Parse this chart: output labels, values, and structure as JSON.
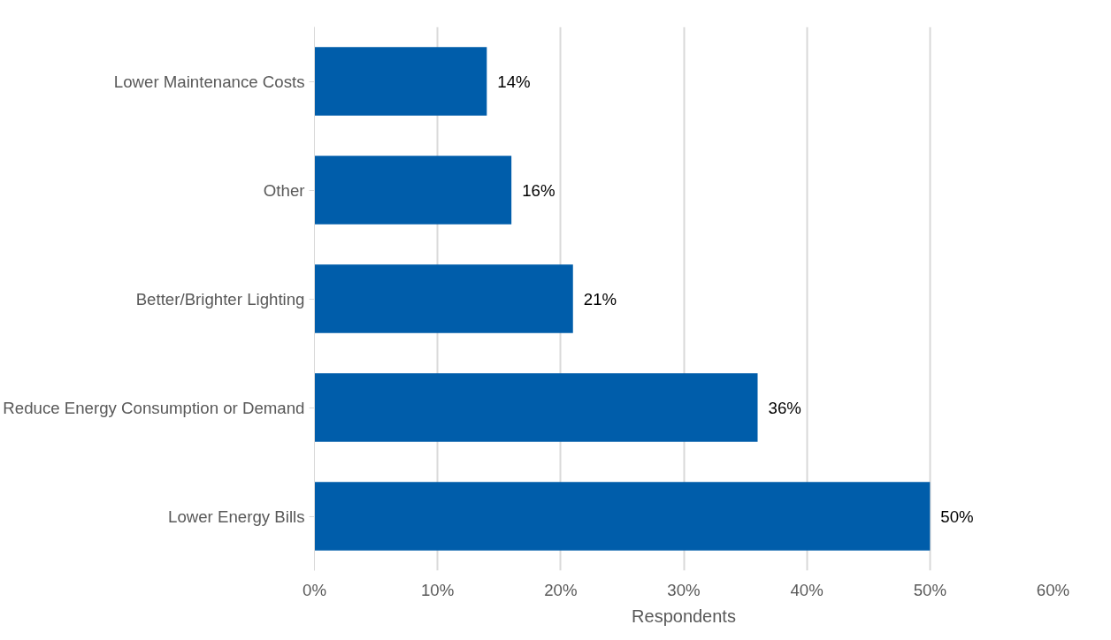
{
  "chart_data": {
    "type": "bar",
    "orientation": "horizontal",
    "categories": [
      "Lower Maintenance Costs",
      "Other",
      "Better/Brighter Lighting",
      "Reduce Energy Consumption or Demand",
      "Lower Energy Bills"
    ],
    "values": [
      14,
      16,
      21,
      36,
      50
    ],
    "value_labels": [
      "14%",
      "16%",
      "21%",
      "36%",
      "50%"
    ],
    "color": "#005daa",
    "xlabel": "Respondents",
    "xlim": [
      0,
      60
    ],
    "xticks": [
      {
        "value": 0,
        "label": "0%"
      },
      {
        "value": 10,
        "label": "10%"
      },
      {
        "value": 20,
        "label": "20%"
      },
      {
        "value": 30,
        "label": "30%"
      },
      {
        "value": 40,
        "label": "40%"
      },
      {
        "value": 50,
        "label": "50%"
      },
      {
        "value": 60,
        "label": "60%"
      }
    ],
    "grid": "x"
  }
}
